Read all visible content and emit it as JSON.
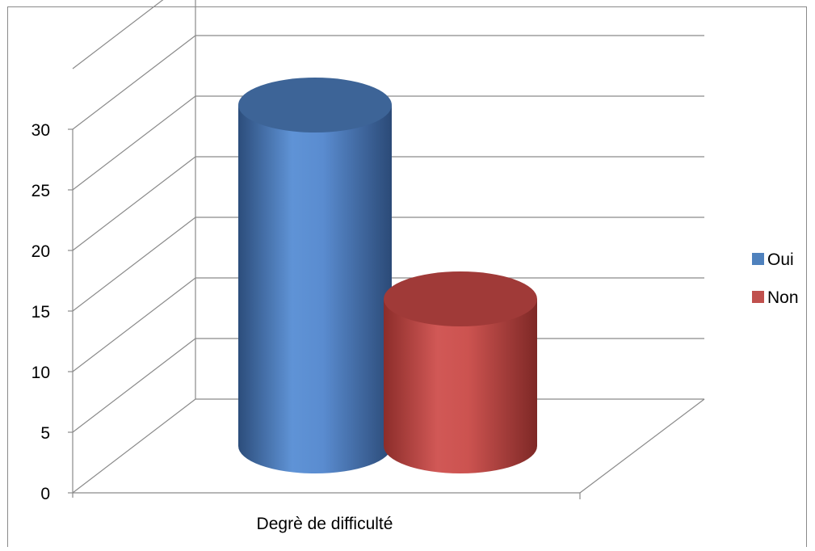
{
  "chart_data": {
    "type": "bar",
    "style": "3d-cylinder",
    "categories": [
      "Degrè de difficulté"
    ],
    "series": [
      {
        "name": "Oui",
        "values": [
          28
        ],
        "color": "#4F81BD"
      },
      {
        "name": "Non",
        "values": [
          12
        ],
        "color": "#C0504D"
      }
    ],
    "y_ticks": [
      "0",
      "5",
      "10",
      "15",
      "20",
      "25",
      "30"
    ],
    "ylim": [
      0,
      35
    ],
    "grid": true,
    "legend_position": "right"
  }
}
